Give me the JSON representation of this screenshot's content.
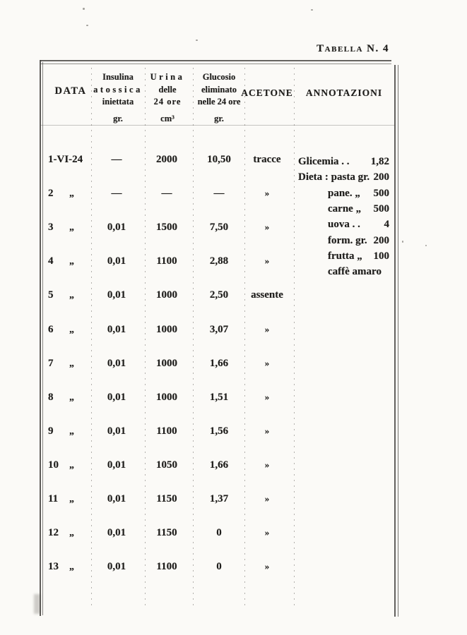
{
  "title": "Tabella N. 4",
  "table": {
    "ditto_mark": "„",
    "columns": [
      {
        "lines": [
          "DATA"
        ],
        "unit": ""
      },
      {
        "lines": [
          "Insulina",
          "atossica",
          "iniettata"
        ],
        "unit": "gr."
      },
      {
        "lines": [
          "Urina",
          "delle",
          "24 ore"
        ],
        "unit": "cm³"
      },
      {
        "lines": [
          "Glucosio",
          "eliminato",
          "nelle 24 ore"
        ],
        "unit": "gr."
      },
      {
        "lines": [
          "ACETONE"
        ],
        "unit": ""
      },
      {
        "lines": [
          "ANNOTAZIONI"
        ],
        "unit": ""
      }
    ],
    "rows": [
      {
        "date": "1-VI-24",
        "ditto": false,
        "insulin": "—",
        "urine": "2000",
        "glucose": "10,50",
        "acetone": "tracce"
      },
      {
        "date": "2",
        "ditto": true,
        "insulin": "—",
        "urine": "—",
        "glucose": "—",
        "acetone": "»"
      },
      {
        "date": "3",
        "ditto": true,
        "insulin": "0,01",
        "urine": "1500",
        "glucose": "7,50",
        "acetone": "»"
      },
      {
        "date": "4",
        "ditto": true,
        "insulin": "0,01",
        "urine": "1100",
        "glucose": "2,88",
        "acetone": "»"
      },
      {
        "date": "5",
        "ditto": true,
        "insulin": "0,01",
        "urine": "1000",
        "glucose": "2,50",
        "acetone": "assente"
      },
      {
        "date": "6",
        "ditto": true,
        "insulin": "0,01",
        "urine": "1000",
        "glucose": "3,07",
        "acetone": "»"
      },
      {
        "date": "7",
        "ditto": true,
        "insulin": "0,01",
        "urine": "1000",
        "glucose": "1,66",
        "acetone": "»"
      },
      {
        "date": "8",
        "ditto": true,
        "insulin": "0,01",
        "urine": "1000",
        "glucose": "1,51",
        "acetone": "»"
      },
      {
        "date": "9",
        "ditto": true,
        "insulin": "0,01",
        "urine": "1100",
        "glucose": "1,56",
        "acetone": "»"
      },
      {
        "date": "10",
        "ditto": true,
        "insulin": "0,01",
        "urine": "1050",
        "glucose": "1,66",
        "acetone": "»"
      },
      {
        "date": "11",
        "ditto": true,
        "insulin": "0,01",
        "urine": "1150",
        "glucose": "1,37",
        "acetone": "»"
      },
      {
        "date": "12",
        "ditto": true,
        "insulin": "0,01",
        "urine": "1150",
        "glucose": "0",
        "acetone": "»"
      },
      {
        "date": "13",
        "ditto": true,
        "insulin": "0,01",
        "urine": "1100",
        "glucose": "0",
        "acetone": "»"
      }
    ]
  },
  "annotations": [
    {
      "text": "Glicemia .  .",
      "value": "1,82",
      "indent": false
    },
    {
      "text": "Dieta : pasta  gr.",
      "value": "200",
      "indent": false
    },
    {
      "text": "pane.  „",
      "value": "500",
      "indent": true
    },
    {
      "text": "carne  „",
      "value": "500",
      "indent": true
    },
    {
      "text": "uova .  .",
      "value": "4",
      "indent": true
    },
    {
      "text": "form.  gr.",
      "value": "200",
      "indent": true
    },
    {
      "text": "frutta  „",
      "value": "100",
      "indent": true
    },
    {
      "text": "caffè amaro",
      "value": "",
      "indent": true
    }
  ]
}
